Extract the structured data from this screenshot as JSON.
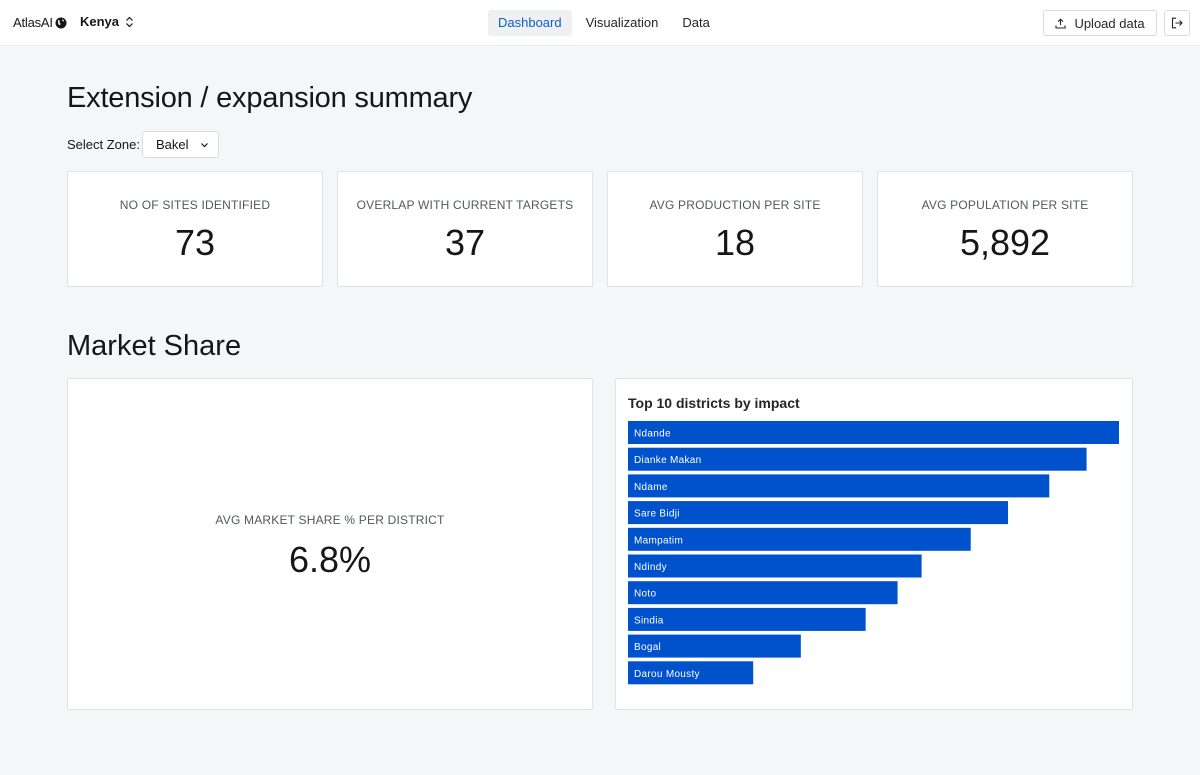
{
  "nav": {
    "brand": "AtlasAI",
    "country": "Kenya",
    "tabs": [
      {
        "label": "Dashboard",
        "active": true
      },
      {
        "label": "Visualization",
        "active": false
      },
      {
        "label": "Data",
        "active": false
      }
    ],
    "upload_label": "Upload data"
  },
  "summary": {
    "title": "Extension / expansion summary",
    "zone_label": "Select Zone:",
    "zone_value": "Bakel",
    "stats": [
      {
        "label": "NO OF SITES IDENTIFIED",
        "value": "73"
      },
      {
        "label": "OVERLAP WITH CURRENT TARGETS",
        "value": "37"
      },
      {
        "label": "AVG PRODUCTION PER SITE",
        "value": "18"
      },
      {
        "label": "AVG POPULATION PER SITE",
        "value": "5,892"
      }
    ]
  },
  "market": {
    "title": "Market Share",
    "share_label": "AVG MARKET SHARE % PER DISTRICT",
    "share_value": "6.8%"
  },
  "colors": {
    "accent": "#0f5fc6",
    "bar": "#0052cc"
  },
  "chart_data": {
    "type": "bar",
    "orientation": "horizontal",
    "title": "Top 10 districts by impact",
    "categories": [
      "Ndande",
      "Dianke Makan",
      "Ndame",
      "Sare Bidji",
      "Mampatim",
      "Ndindy",
      "Noto",
      "Sindia",
      "Bogal",
      "Darou Mousty"
    ],
    "values": [
      100,
      93.4,
      85.8,
      77.4,
      69.8,
      59.8,
      54.9,
      48.4,
      35.2,
      25.5
    ]
  }
}
